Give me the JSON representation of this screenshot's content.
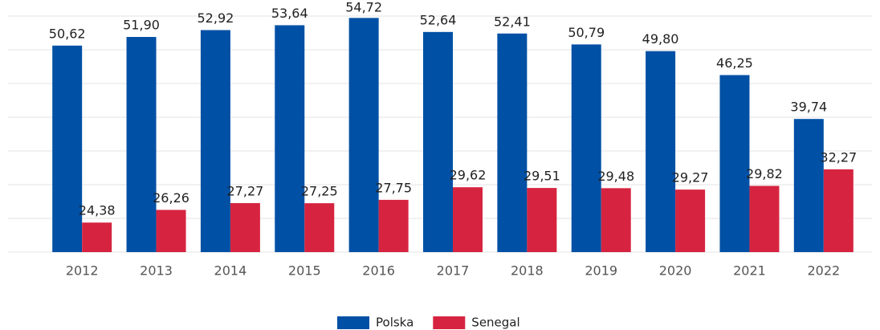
{
  "chart_data": {
    "type": "bar",
    "categories": [
      "2012",
      "2013",
      "2014",
      "2015",
      "2016",
      "2017",
      "2018",
      "2019",
      "2020",
      "2021",
      "2022"
    ],
    "series": [
      {
        "name": "Polska",
        "color": "#0050a5",
        "values": [
          50.62,
          51.9,
          52.92,
          53.64,
          54.72,
          52.64,
          52.41,
          50.79,
          49.8,
          46.25,
          39.74
        ],
        "value_labels": [
          "50,62",
          "51,90",
          "52,92",
          "53,64",
          "54,72",
          "52,64",
          "52,41",
          "50,79",
          "49,80",
          "46,25",
          "39,74"
        ]
      },
      {
        "name": "Senegal",
        "color": "#d62440",
        "values": [
          24.38,
          26.26,
          27.27,
          27.25,
          27.75,
          29.62,
          29.51,
          29.48,
          29.27,
          29.82,
          32.27
        ],
        "value_labels": [
          "24,38",
          "26,26",
          "27,27",
          "27,25",
          "27,75",
          "29,62",
          "29,51",
          "29,48",
          "29,27",
          "29,82",
          "32,27"
        ]
      }
    ],
    "ylim": [
      20,
      55
    ],
    "yticks": [
      20,
      25,
      30,
      35,
      40,
      45,
      50,
      55
    ],
    "grid": true,
    "legend": "bottom"
  }
}
